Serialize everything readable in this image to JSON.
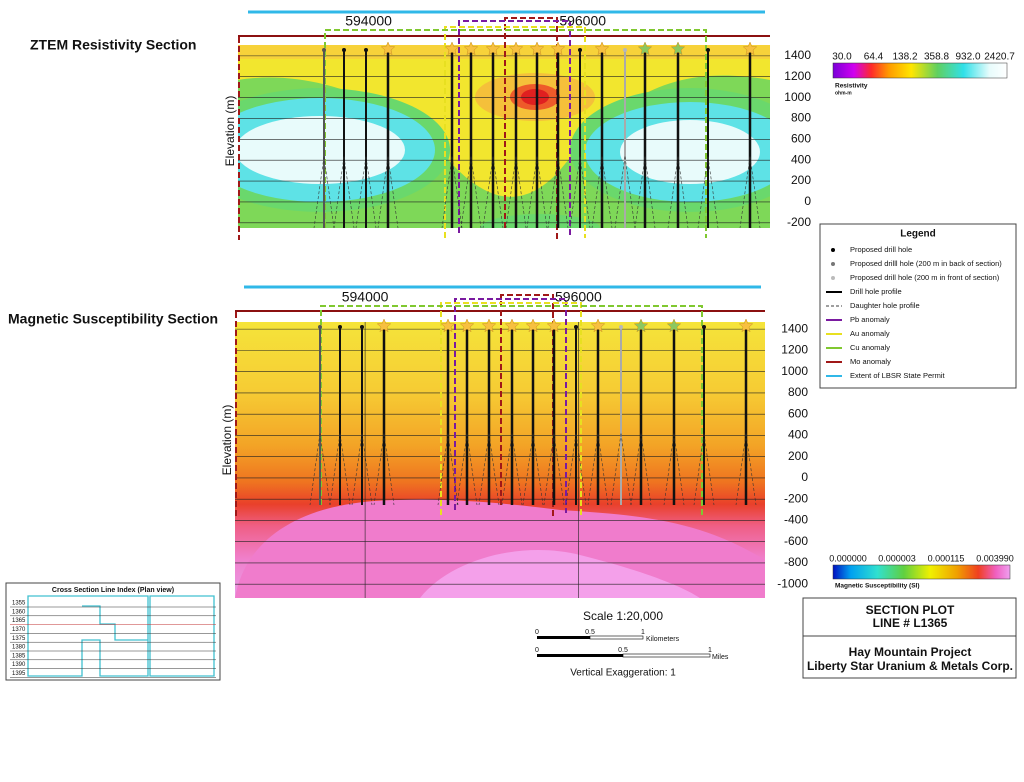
{
  "sections": [
    {
      "title": "ZTEM Resistivity Section",
      "y_axis_label": "Elevation (m)",
      "eastings": [
        594000,
        596000
      ],
      "xlim": [
        592780,
        597750
      ],
      "ylim": [
        -250,
        1600
      ],
      "yticks": [
        1400,
        1200,
        1000,
        800,
        600,
        400,
        200,
        0,
        -200
      ]
    },
    {
      "title": "Magnetic Susceptibility Section",
      "y_axis_label": "Elevation (m)",
      "eastings": [
        594000,
        596000
      ],
      "xlim": [
        592780,
        597750
      ],
      "ylim": [
        -1130,
        1580
      ],
      "yticks": [
        1400,
        1200,
        1000,
        800,
        600,
        400,
        200,
        0,
        -200,
        -400,
        -600,
        -800,
        -1000
      ]
    }
  ],
  "resistivity_scale": {
    "labels": [
      "30.0",
      "64.4",
      "138.2",
      "358.8",
      "932.0",
      "2420.7"
    ],
    "title": "Resistivity",
    "unit": "ohm-m"
  },
  "magnetic_scale": {
    "labels": [
      "0.000000",
      "0.000003",
      "0.000115",
      "0.003990"
    ],
    "title": "Magnetic Susceptibility (SI)"
  },
  "legend": {
    "title": "Legend",
    "items": [
      "Proposed drill hole",
      "Proposed drilll hole (200 m in back of section)",
      "Proposed drill hole (200 m in front of section)",
      "Drill hole profile",
      "Daughter hole profile",
      "Pb anomaly",
      "Au anomaly",
      "Cu anomaly",
      "Mo anomaly",
      "Extent of LBSR State Permit"
    ]
  },
  "scale": {
    "title": "Scale  1:20,000",
    "km_labels": [
      "0",
      "0.5",
      "1"
    ],
    "km_unit": "Kilometers",
    "mi_labels": [
      "0",
      "0.5",
      "1"
    ],
    "mi_unit": "Miles",
    "note": "Vertical Exaggeration: 1"
  },
  "title_block": {
    "lines": [
      "SECTION PLOT",
      "LINE # L1365"
    ],
    "project": [
      "Hay Mountain Project",
      "Liberty Star Uranium & Metals Corp."
    ]
  },
  "index_map": {
    "title": "Cross Section Line Index (Plan view)",
    "lines": [
      "1355",
      "1360",
      "1365",
      "1370",
      "1375",
      "1380",
      "1385",
      "1390",
      "1395"
    ]
  }
}
